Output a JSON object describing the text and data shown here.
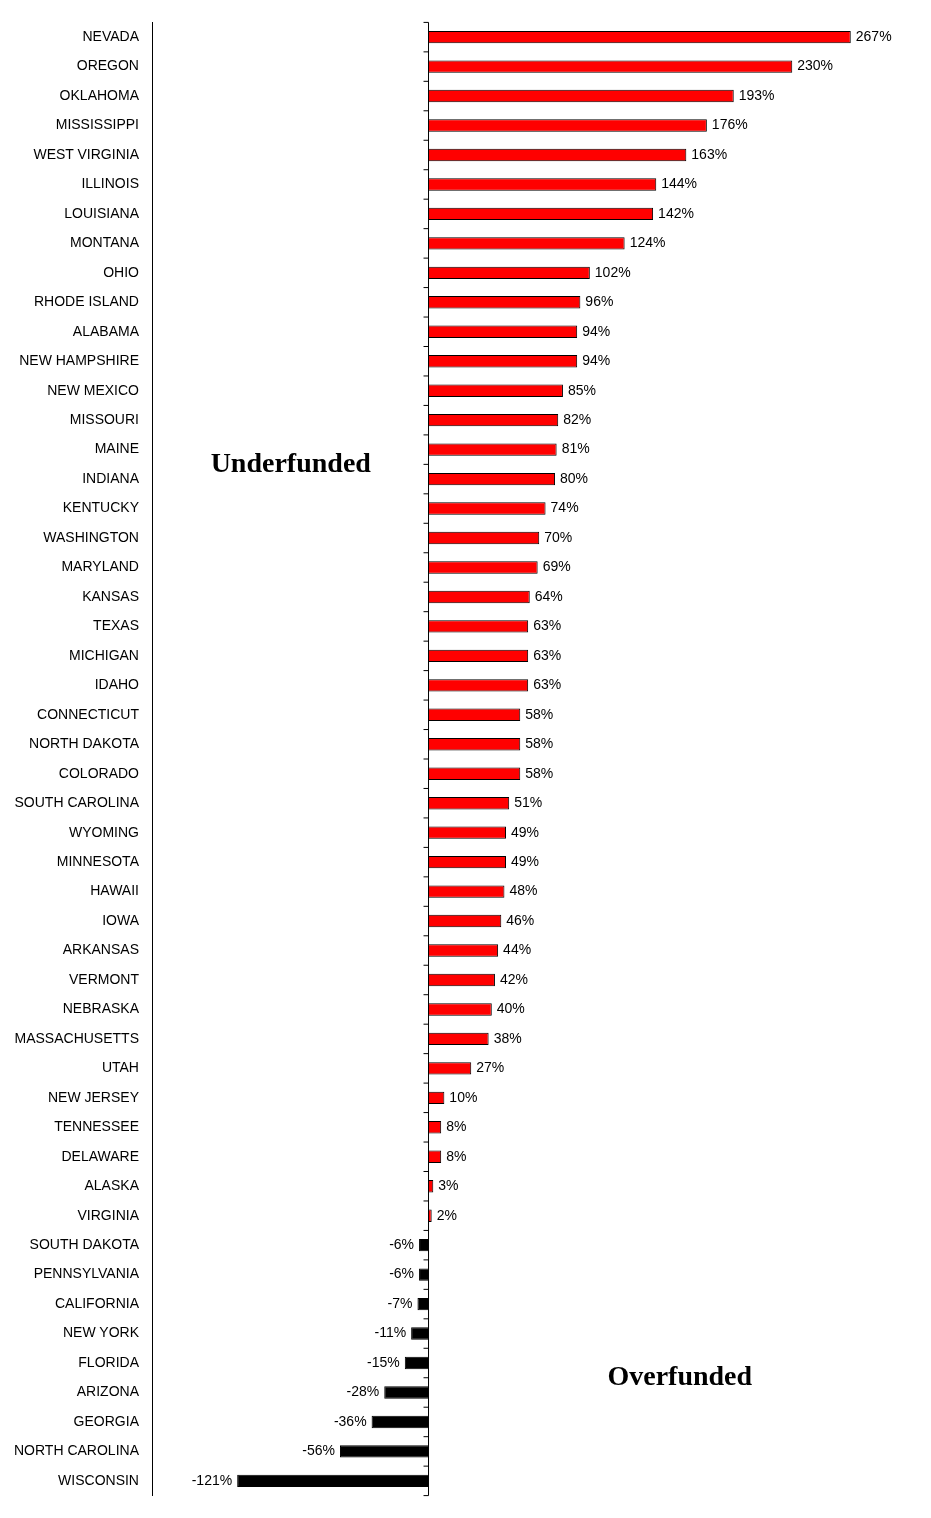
{
  "chart_data": {
    "type": "bar",
    "orientation": "horizontal",
    "categories": [
      "NEVADA",
      "OREGON",
      "OKLAHOMA",
      "MISSISSIPPI",
      "WEST VIRGINIA",
      "ILLINOIS",
      "LOUISIANA",
      "MONTANA",
      "OHIO",
      "RHODE ISLAND",
      "ALABAMA",
      "NEW HAMPSHIRE",
      "NEW MEXICO",
      "MISSOURI",
      "MAINE",
      "INDIANA",
      "KENTUCKY",
      "WASHINGTON",
      "MARYLAND",
      "KANSAS",
      "TEXAS",
      "MICHIGAN",
      "IDAHO",
      "CONNECTICUT",
      "NORTH DAKOTA",
      "COLORADO",
      "SOUTH CAROLINA",
      "WYOMING",
      "MINNESOTA",
      "HAWAII",
      "IOWA",
      "ARKANSAS",
      "VERMONT",
      "NEBRASKA",
      "MASSACHUSETTS",
      "UTAH",
      "NEW JERSEY",
      "TENNESSEE",
      "DELAWARE",
      "ALASKA",
      "VIRGINIA",
      "SOUTH DAKOTA",
      "PENNSYLVANIA",
      "CALIFORNIA",
      "NEW YORK",
      "FLORIDA",
      "ARIZONA",
      "GEORGIA",
      "NORTH CAROLINA",
      "WISCONSIN"
    ],
    "values": [
      267,
      230,
      193,
      176,
      163,
      144,
      142,
      124,
      102,
      96,
      94,
      94,
      85,
      82,
      81,
      80,
      74,
      70,
      69,
      64,
      63,
      63,
      63,
      58,
      58,
      58,
      51,
      49,
      49,
      48,
      46,
      44,
      42,
      40,
      38,
      27,
      10,
      8,
      8,
      3,
      2,
      -6,
      -6,
      -7,
      -11,
      -15,
      -28,
      -36,
      -56,
      -121
    ],
    "colors": [
      "#ff0000",
      "#ff0000",
      "#ff0000",
      "#ff0000",
      "#ff0000",
      "#ff0000",
      "#ff0000",
      "#ff0000",
      "#ff0000",
      "#ff0000",
      "#ff0000",
      "#ff0000",
      "#ff0000",
      "#ff0000",
      "#ff0000",
      "#ff0000",
      "#ff0000",
      "#ff0000",
      "#ff0000",
      "#ff0000",
      "#ff0000",
      "#ff0000",
      "#ff0000",
      "#ff0000",
      "#ff0000",
      "#ff0000",
      "#ff0000",
      "#ff0000",
      "#ff0000",
      "#ff0000",
      "#ff0000",
      "#ff0000",
      "#ff0000",
      "#ff0000",
      "#ff0000",
      "#ff0000",
      "#ff0000",
      "#ff0000",
      "#ff0000",
      "#ff0000",
      "#ff0000",
      "#000000",
      "#000000",
      "#000000",
      "#000000",
      "#000000",
      "#000000",
      "#000000",
      "#000000",
      "#000000"
    ],
    "value_labels": [
      "267%",
      "230%",
      "193%",
      "176%",
      "163%",
      "144%",
      "142%",
      "124%",
      "102%",
      "96%",
      "94%",
      "94%",
      "85%",
      "82%",
      "81%",
      "80%",
      "74%",
      "70%",
      "69%",
      "64%",
      "63%",
      "63%",
      "63%",
      "58%",
      "58%",
      "58%",
      "51%",
      "49%",
      "49%",
      "48%",
      "46%",
      "44%",
      "42%",
      "40%",
      "38%",
      "27%",
      "10%",
      "8%",
      "8%",
      "3%",
      "2%",
      "-6%",
      "-6%",
      "-7%",
      "-11%",
      "-15%",
      "-28%",
      "-36%",
      "-56%",
      "-121%"
    ],
    "tick_labels": "y",
    "grid": false,
    "legend": false,
    "annotations": [
      "Underfunded",
      "Overfunded"
    ]
  }
}
